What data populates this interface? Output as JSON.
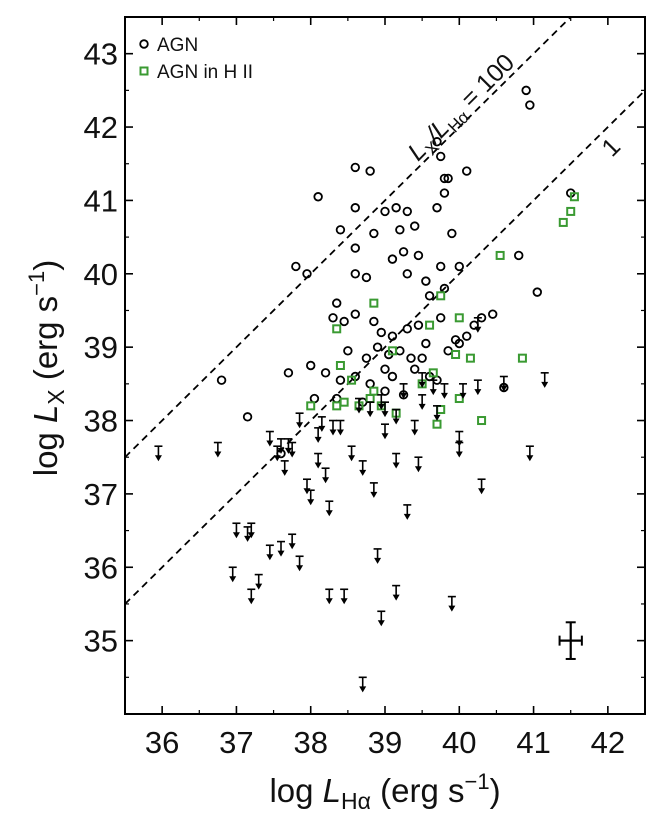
{
  "chart_data": {
    "type": "scatter",
    "xlim": [
      35.5,
      42.5
    ],
    "ylim": [
      34.0,
      43.5
    ],
    "x_ticks": [
      36,
      37,
      38,
      39,
      40,
      41,
      42
    ],
    "y_ticks": [
      35,
      36,
      37,
      38,
      39,
      40,
      41,
      42,
      43
    ],
    "x_tick_labels": [
      "36",
      "37",
      "38",
      "39",
      "40",
      "41",
      "42"
    ],
    "y_tick_labels": [
      "35",
      "36",
      "37",
      "38",
      "39",
      "40",
      "41",
      "42",
      "43"
    ],
    "xlabel": {
      "prefix": "log ",
      "var": "L",
      "sub": "Hα",
      "units": " (erg s",
      "exp": "−1",
      "close": ")"
    },
    "ylabel": {
      "prefix": "log ",
      "var": "L",
      "sub": "X",
      "units": " (erg s",
      "exp": "−1",
      "close": ")"
    },
    "grid": false,
    "legend_position": "top-left",
    "colors": {
      "agn": "#000000",
      "agn_in_hii": "#3a9a32",
      "reference": "#000000"
    },
    "reference_lines": [
      {
        "offset": 2,
        "label": {
          "pre": "L",
          "sub1": "X",
          "mid": "/L",
          "sub2": "Hα",
          "post": " = 100"
        }
      },
      {
        "offset": 0,
        "label": {
          "text": "1"
        }
      }
    ],
    "series": [
      {
        "name": "AGN",
        "marker": "open-circle",
        "color": "#000000",
        "points": [
          [
            41.5,
            41.1
          ],
          [
            40.9,
            42.5
          ],
          [
            40.95,
            42.3
          ],
          [
            39.7,
            41.8
          ],
          [
            39.75,
            41.6
          ],
          [
            39.8,
            41.3
          ],
          [
            39.85,
            41.3
          ],
          [
            39.8,
            41.1
          ],
          [
            39.7,
            40.9
          ],
          [
            40.1,
            41.4
          ],
          [
            38.1,
            41.05
          ],
          [
            38.6,
            41.45
          ],
          [
            38.8,
            41.4
          ],
          [
            38.6,
            40.9
          ],
          [
            39.0,
            40.85
          ],
          [
            39.3,
            40.85
          ],
          [
            39.2,
            40.6
          ],
          [
            39.15,
            40.9
          ],
          [
            39.4,
            40.65
          ],
          [
            39.9,
            40.55
          ],
          [
            38.4,
            40.6
          ],
          [
            38.85,
            40.55
          ],
          [
            39.25,
            40.3
          ],
          [
            39.45,
            40.25
          ],
          [
            39.1,
            40.2
          ],
          [
            37.8,
            40.1
          ],
          [
            37.95,
            40.0
          ],
          [
            38.6,
            40.35
          ],
          [
            38.6,
            40.0
          ],
          [
            38.75,
            39.95
          ],
          [
            39.3,
            40.0
          ],
          [
            39.55,
            39.9
          ],
          [
            39.75,
            40.1
          ],
          [
            40.0,
            40.1
          ],
          [
            40.3,
            39.4
          ],
          [
            39.6,
            39.7
          ],
          [
            39.8,
            39.8
          ],
          [
            40.8,
            40.25
          ],
          [
            41.05,
            39.75
          ],
          [
            38.35,
            39.6
          ],
          [
            38.3,
            39.4
          ],
          [
            38.45,
            39.35
          ],
          [
            38.6,
            39.45
          ],
          [
            38.85,
            39.35
          ],
          [
            38.95,
            39.2
          ],
          [
            39.1,
            39.15
          ],
          [
            39.3,
            39.25
          ],
          [
            39.45,
            39.3
          ],
          [
            39.75,
            39.4
          ],
          [
            39.95,
            39.1
          ],
          [
            40.0,
            39.05
          ],
          [
            40.1,
            39.15
          ],
          [
            40.2,
            39.3
          ],
          [
            40.45,
            39.45
          ],
          [
            38.5,
            38.95
          ],
          [
            38.75,
            38.85
          ],
          [
            38.9,
            39.0
          ],
          [
            39.05,
            38.9
          ],
          [
            39.2,
            38.95
          ],
          [
            39.35,
            38.85
          ],
          [
            39.55,
            39.05
          ],
          [
            39.85,
            38.95
          ],
          [
            38.0,
            38.75
          ],
          [
            38.2,
            38.65
          ],
          [
            38.4,
            38.55
          ],
          [
            38.6,
            38.6
          ],
          [
            38.8,
            38.5
          ],
          [
            39.1,
            38.6
          ],
          [
            39.4,
            38.7
          ],
          [
            39.6,
            38.6
          ],
          [
            37.7,
            38.65
          ],
          [
            37.15,
            38.05
          ],
          [
            36.8,
            38.55
          ],
          [
            37.6,
            37.55
          ],
          [
            38.05,
            38.3
          ],
          [
            38.35,
            38.3
          ],
          [
            38.7,
            38.25
          ],
          [
            39.0,
            38.4
          ],
          [
            39.25,
            38.35
          ],
          [
            40.6,
            38.45
          ],
          [
            39.7,
            38.55
          ],
          [
            39.5,
            38.85
          ],
          [
            39.0,
            38.7
          ]
        ]
      },
      {
        "name": "AGN in H II",
        "marker": "open-square",
        "color": "#3a9a32",
        "points": [
          [
            41.55,
            41.05
          ],
          [
            41.5,
            40.85
          ],
          [
            41.4,
            40.7
          ],
          [
            40.55,
            40.25
          ],
          [
            39.75,
            39.7
          ],
          [
            38.85,
            39.6
          ],
          [
            40.0,
            39.4
          ],
          [
            38.35,
            39.25
          ],
          [
            39.6,
            39.3
          ],
          [
            40.15,
            38.85
          ],
          [
            40.85,
            38.85
          ],
          [
            39.65,
            38.65
          ],
          [
            38.55,
            38.55
          ],
          [
            39.5,
            38.5
          ],
          [
            38.85,
            38.4
          ],
          [
            38.45,
            38.25
          ],
          [
            38.35,
            38.2
          ],
          [
            38.0,
            38.2
          ],
          [
            38.65,
            38.2
          ],
          [
            38.95,
            38.2
          ],
          [
            39.15,
            38.1
          ],
          [
            39.75,
            38.15
          ],
          [
            40.0,
            38.3
          ],
          [
            39.7,
            37.95
          ],
          [
            40.3,
            38.0
          ],
          [
            38.4,
            38.75
          ],
          [
            38.8,
            38.3
          ],
          [
            39.1,
            38.95
          ],
          [
            39.95,
            38.9
          ]
        ]
      },
      {
        "name": "",
        "marker": "upper-limit",
        "color": "#000000",
        "points": [
          [
            35.95,
            37.65
          ],
          [
            36.75,
            37.7
          ],
          [
            37.45,
            37.85
          ],
          [
            37.55,
            37.65
          ],
          [
            37.6,
            37.75
          ],
          [
            37.7,
            37.75
          ],
          [
            37.75,
            37.7
          ],
          [
            37.85,
            38.1
          ],
          [
            38.1,
            37.55
          ],
          [
            38.2,
            37.35
          ],
          [
            37.95,
            37.2
          ],
          [
            38.25,
            36.9
          ],
          [
            38.0,
            37.05
          ],
          [
            37.2,
            36.6
          ],
          [
            37.15,
            36.55
          ],
          [
            37.45,
            36.3
          ],
          [
            37.6,
            36.35
          ],
          [
            37.75,
            36.45
          ],
          [
            37.85,
            36.15
          ],
          [
            37.3,
            35.9
          ],
          [
            36.95,
            36.0
          ],
          [
            37.2,
            35.7
          ],
          [
            37.0,
            36.6
          ],
          [
            38.25,
            35.7
          ],
          [
            38.45,
            35.7
          ],
          [
            38.7,
            34.5
          ],
          [
            38.9,
            36.25
          ],
          [
            38.95,
            35.4
          ],
          [
            39.15,
            35.75
          ],
          [
            39.9,
            35.6
          ],
          [
            39.3,
            36.85
          ],
          [
            38.4,
            38.0
          ],
          [
            38.55,
            37.65
          ],
          [
            38.7,
            37.45
          ],
          [
            38.85,
            37.15
          ],
          [
            39.15,
            37.55
          ],
          [
            39.45,
            37.5
          ],
          [
            38.65,
            38.3
          ],
          [
            38.8,
            38.25
          ],
          [
            39.0,
            38.25
          ],
          [
            39.4,
            38.0
          ],
          [
            39.7,
            38.2
          ],
          [
            40.0,
            37.7
          ],
          [
            40.0,
            37.85
          ],
          [
            40.3,
            37.2
          ],
          [
            40.05,
            38.5
          ],
          [
            40.25,
            38.55
          ],
          [
            40.6,
            38.6
          ],
          [
            40.95,
            37.65
          ],
          [
            41.15,
            38.65
          ],
          [
            39.25,
            38.5
          ],
          [
            39.5,
            38.35
          ],
          [
            39.8,
            38.5
          ],
          [
            40.25,
            39.4
          ],
          [
            39.5,
            38.65
          ],
          [
            39.65,
            38.55
          ],
          [
            38.95,
            38.35
          ],
          [
            39.15,
            38.15
          ],
          [
            38.3,
            38.0
          ],
          [
            38.1,
            37.9
          ],
          [
            37.65,
            37.45
          ],
          [
            39.0,
            37.95
          ],
          [
            38.15,
            38.05
          ]
        ]
      }
    ],
    "error_bar": {
      "x": 41.5,
      "y": 35.0,
      "dx": 0.15,
      "dy": 0.25
    },
    "legend": [
      {
        "label": "AGN",
        "marker": "open-circle",
        "color": "#000000"
      },
      {
        "label": "AGN in H II",
        "marker": "open-square",
        "color": "#3a9a32"
      }
    ]
  }
}
